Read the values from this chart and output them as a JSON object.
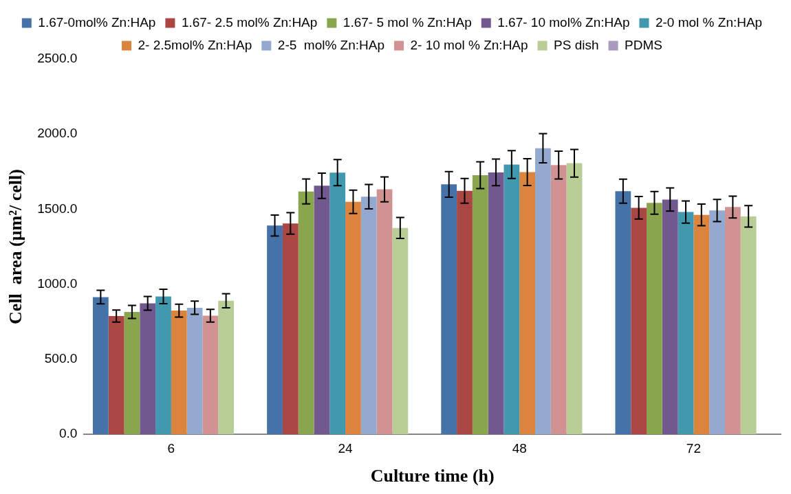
{
  "chart_data": {
    "type": "bar",
    "xlabel": "Culture time (h)",
    "ylabel": "Cell  area (µm²/ cell)",
    "categories": [
      "6",
      "24",
      "48",
      "72"
    ],
    "ylim": [
      0,
      2500
    ],
    "yticks": [
      {
        "value": 0,
        "label": "0.0"
      },
      {
        "value": 500,
        "label": "500.0"
      },
      {
        "value": 1000,
        "label": "1000.0"
      },
      {
        "value": 1500,
        "label": "1500.0"
      },
      {
        "value": 2000,
        "label": "2000.0"
      },
      {
        "value": 2500,
        "label": "2500.0"
      }
    ],
    "grid": false,
    "legend": "top",
    "series": [
      {
        "name": "1.67-0mol% Zn:HAp",
        "color": "#4572a7",
        "values": [
          914,
          1391,
          1665,
          1620
        ],
        "errors": [
          45,
          70,
          85,
          80
        ]
      },
      {
        "name": "1.67- 2.5 mol% Zn:HAp",
        "color": "#aa4643",
        "values": [
          788,
          1405,
          1622,
          1509
        ],
        "errors": [
          40,
          72,
          82,
          75
        ]
      },
      {
        "name": "1.67- 5 mol % Zn:HAp",
        "color": "#89a54e",
        "values": [
          815,
          1618,
          1726,
          1542
        ],
        "errors": [
          43,
          83,
          89,
          76
        ]
      },
      {
        "name": "1.67- 10 mol% Zn:HAp",
        "color": "#71588f",
        "values": [
          872,
          1656,
          1745,
          1564
        ],
        "errors": [
          46,
          84,
          89,
          77
        ]
      },
      {
        "name": "2-0 mol % Zn:HAp",
        "color": "#4198af",
        "values": [
          918,
          1743,
          1797,
          1481
        ],
        "errors": [
          48,
          87,
          93,
          74
        ]
      },
      {
        "name": "2- 2.5mol% Zn:HAp",
        "color": "#db843d",
        "values": [
          824,
          1549,
          1747,
          1462
        ],
        "errors": [
          43,
          78,
          89,
          72
        ]
      },
      {
        "name": "2-5  mol% Zn:HAp",
        "color": "#93a9cf",
        "values": [
          843,
          1583,
          1906,
          1491
        ],
        "errors": [
          44,
          81,
          97,
          74
        ]
      },
      {
        "name": "2- 10 mol % Zn:HAp",
        "color": "#d19392",
        "values": [
          790,
          1632,
          1794,
          1514
        ],
        "errors": [
          42,
          83,
          93,
          73
        ]
      },
      {
        "name": "PS dish",
        "color": "#b9cd96",
        "values": [
          889,
          1375,
          1806,
          1452
        ],
        "errors": [
          47,
          70,
          92,
          72
        ]
      },
      {
        "name": "PDMS",
        "color": "#a99bbd",
        "values": [
          null,
          null,
          null,
          null
        ]
      }
    ]
  }
}
